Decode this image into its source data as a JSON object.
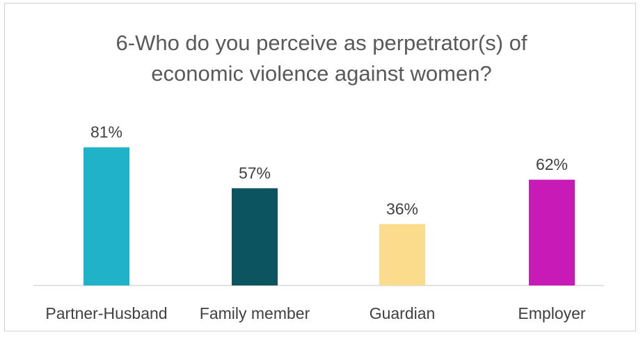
{
  "chart_data": {
    "type": "bar",
    "title_lines": [
      "6-Who do you perceive as perpetrator(s) of",
      "economic violence against women?"
    ],
    "categories": [
      "Partner-Husband",
      "Family member",
      "Guardian",
      "Employer"
    ],
    "values": [
      81,
      57,
      36,
      62
    ],
    "value_labels": [
      "81%",
      "57%",
      "36%",
      "62%"
    ],
    "colors": [
      "#1fb2c8",
      "#0d5461",
      "#fbdc8c",
      "#c71ab7"
    ],
    "ylim": [
      0,
      100
    ],
    "grid": false,
    "legend": "none"
  }
}
